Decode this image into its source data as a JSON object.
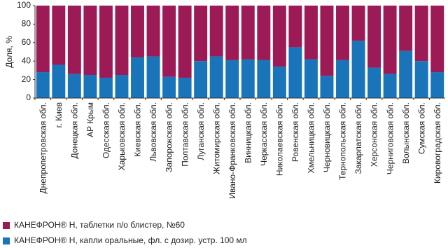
{
  "chart_data": {
    "type": "stacked-bar",
    "y_label": "Доля, %",
    "categories": [
      "Днепропетровская обл.",
      "г. Киев",
      "Донецкая обл.",
      "АР Крым",
      "Одесская обл.",
      "Харьковская обл.",
      "Киевская обл.",
      "Львовская обл.",
      "Запорожская обл.",
      "Полтавская обл.",
      "Луганская обл.",
      "Житомирская обл.",
      "Ивано-Франковская обл.",
      "Винницкая обл.",
      "Черкасская обл.",
      "Николаевская обл.",
      "Ровенская обл.",
      "Хмельницкая обл.",
      "Черновицкая обл.",
      "Тернопольская обл.",
      "Закарпатская обл.",
      "Херсонская обл.",
      "Черниговская обл.",
      "Волынская обл.",
      "Сумская обл.",
      "Кировоградская обл."
    ],
    "series": [
      {
        "name": "КАНЕФРОН® Н, таблетки п/о блистер, №60",
        "color": "#9c1a55",
        "values": [
          72,
          64,
          74,
          75,
          78,
          75,
          56,
          55,
          77,
          78,
          60,
          55,
          59,
          58,
          59,
          66,
          45,
          58,
          76,
          59,
          38,
          67,
          74,
          49,
          60,
          72
        ]
      },
      {
        "name": "КАНЕФРОН® Н, капли оральные, фл. с дозир. устр. 100 мл",
        "color": "#1a74ba",
        "values": [
          28,
          36,
          26,
          25,
          22,
          25,
          44,
          45,
          23,
          22,
          40,
          45,
          41,
          42,
          41,
          34,
          55,
          42,
          24,
          41,
          62,
          33,
          26,
          51,
          40,
          28
        ]
      }
    ],
    "ylim": [
      0,
      100
    ],
    "yticks": [
      0,
      20,
      40,
      60,
      80,
      100
    ]
  }
}
